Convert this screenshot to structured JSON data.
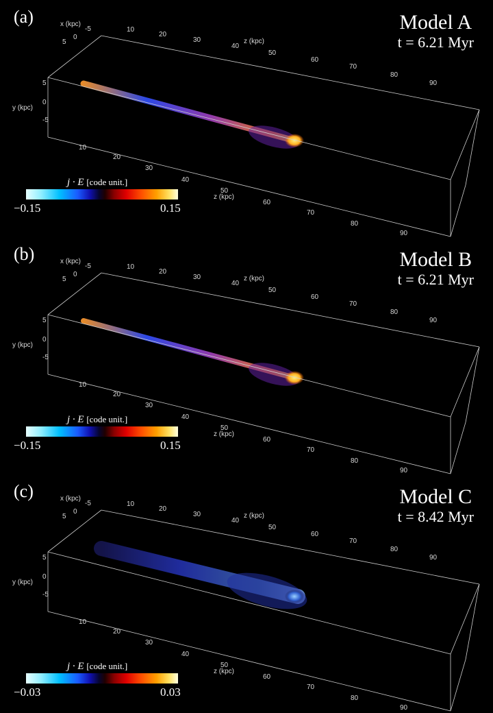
{
  "panels": [
    {
      "label": "(a)",
      "model": "Model A",
      "time": "t = 6.21 Myr",
      "colorbar": {
        "title": "j · E",
        "unit": "[code unit.]",
        "min": "−0.15",
        "max": "0.15"
      },
      "axes": {
        "x_label": "x (kpc)",
        "x_ticks": [
          "5",
          "0",
          "-5"
        ],
        "y_label": "y (kpc)",
        "y_ticks": [
          "5",
          "0",
          "-5"
        ],
        "z_label_top": "z (kpc)",
        "z_ticks_top": [
          "10",
          "20",
          "30",
          "40",
          "50",
          "60",
          "70",
          "80",
          "90"
        ],
        "z_label_bottom": "z (kpc)",
        "z_ticks_bottom": [
          "10",
          "20",
          "30",
          "40",
          "50",
          "60",
          "70",
          "80",
          "90"
        ]
      }
    },
    {
      "label": "(b)",
      "model": "Model B",
      "time": "t = 6.21 Myr",
      "colorbar": {
        "title": "j · E",
        "unit": "[code unit.]",
        "min": "−0.15",
        "max": "0.15"
      },
      "axes": {
        "x_label": "x (kpc)",
        "x_ticks": [
          "5",
          "0",
          "-5"
        ],
        "y_label": "y (kpc)",
        "y_ticks": [
          "5",
          "0",
          "-5"
        ],
        "z_label_top": "z (kpc)",
        "z_ticks_top": [
          "10",
          "20",
          "30",
          "40",
          "50",
          "60",
          "70",
          "80",
          "90"
        ],
        "z_label_bottom": "z (kpc)",
        "z_ticks_bottom": [
          "10",
          "20",
          "30",
          "40",
          "50",
          "60",
          "70",
          "80",
          "90"
        ]
      }
    },
    {
      "label": "(c)",
      "model": "Model C",
      "time": "t = 8.42 Myr",
      "colorbar": {
        "title": "j · E",
        "unit": "[code unit.]",
        "min": "−0.03",
        "max": "0.03"
      },
      "axes": {
        "x_label": "x (kpc)",
        "x_ticks": [
          "5",
          "0",
          "-5"
        ],
        "y_label": "y (kpc)",
        "y_ticks": [
          "5",
          "0",
          "-5"
        ],
        "z_label_top": "z (kpc)",
        "z_ticks_top": [
          "10",
          "20",
          "30",
          "40",
          "50",
          "60",
          "70",
          "80",
          "90"
        ],
        "z_label_bottom": "z (kpc)",
        "z_ticks_bottom": [
          "10",
          "20",
          "30",
          "40",
          "50",
          "60",
          "70",
          "80",
          "90"
        ]
      }
    }
  ]
}
